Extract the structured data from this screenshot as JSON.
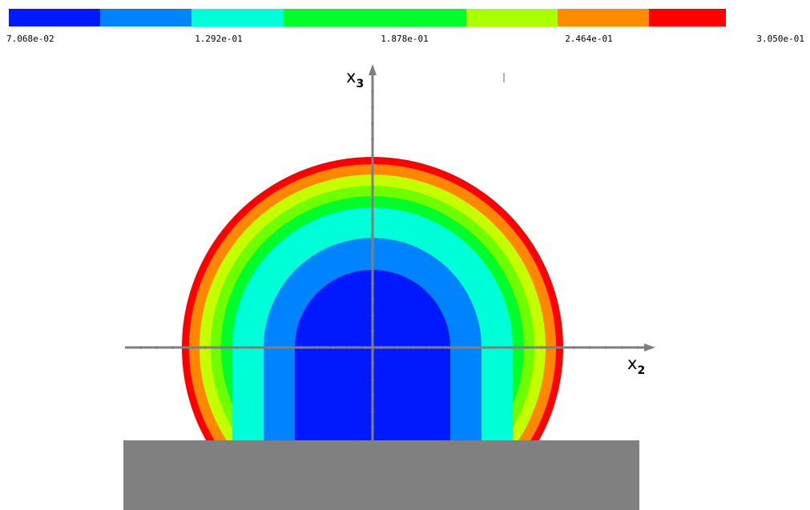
{
  "colorbar": {
    "bands": [
      {
        "color": "#0019ff"
      },
      {
        "color": "#0083ff"
      },
      {
        "color": "#00ffd8"
      },
      {
        "color": "#00ff2a"
      },
      {
        "color": "#aaff00"
      },
      {
        "color": "#ff8c00"
      },
      {
        "color": "#ff0000"
      }
    ],
    "tick_labels": [
      "7.068e-02",
      "1.292e-01",
      "1.878e-01",
      "2.464e-01",
      "3.050e-01"
    ]
  },
  "contours": {
    "levels_outer_to_inner": [
      {
        "color": "#ff0000"
      },
      {
        "color": "#ff8800"
      },
      {
        "color": "#c4ff00"
      },
      {
        "color": "#6eff00"
      },
      {
        "color": "#00ff2a"
      },
      {
        "color": "#00ffd8"
      },
      {
        "color": "#0083ff"
      },
      {
        "color": "#0019ff"
      }
    ]
  },
  "substrate": {
    "color": "#808080"
  },
  "axes": {
    "color": "#7f7f7f",
    "horizontal": {
      "letter": "x",
      "subscript": "2"
    },
    "vertical": {
      "letter": "x",
      "subscript": "3"
    }
  }
}
